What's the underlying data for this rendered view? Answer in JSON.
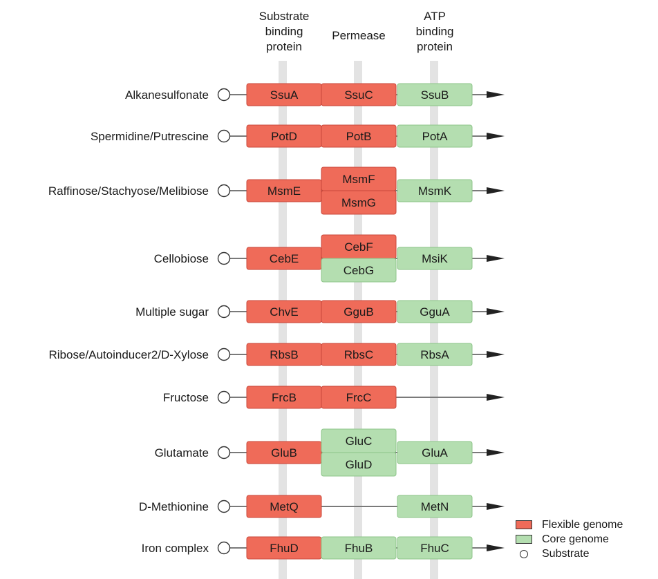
{
  "headers": {
    "substrate_binding": "Substrate\nbinding\nprotein",
    "permease": "Permease",
    "atp_binding": "ATP\nbinding\nprotein"
  },
  "colors": {
    "flexible_fill": "#ef6b59",
    "flexible_stroke": "#c9473a",
    "core_fill": "#b4deb0",
    "core_stroke": "#8cc488",
    "column_band": "#e3e3e3",
    "line": "#7a7a7a",
    "arrow": "#222222"
  },
  "systems": [
    {
      "substrate": "Alkanesulfonate",
      "sbp": {
        "name": "SsuA",
        "genome": "flexible"
      },
      "permease": [
        {
          "name": "SsuC",
          "genome": "flexible"
        }
      ],
      "atp": {
        "name": "SsuB",
        "genome": "core"
      }
    },
    {
      "substrate": "Spermidine/Putrescine",
      "sbp": {
        "name": "PotD",
        "genome": "flexible"
      },
      "permease": [
        {
          "name": "PotB",
          "genome": "flexible"
        }
      ],
      "atp": {
        "name": "PotA",
        "genome": "core"
      }
    },
    {
      "substrate": "Raffinose/Stachyose/Melibiose",
      "sbp": {
        "name": "MsmE",
        "genome": "flexible"
      },
      "permease": [
        {
          "name": "MsmF",
          "genome": "flexible"
        },
        {
          "name": "MsmG",
          "genome": "flexible"
        }
      ],
      "atp": {
        "name": "MsmK",
        "genome": "core"
      }
    },
    {
      "substrate": "Cellobiose",
      "sbp": {
        "name": "CebE",
        "genome": "flexible"
      },
      "permease": [
        {
          "name": "CebF",
          "genome": "flexible"
        },
        {
          "name": "CebG",
          "genome": "core"
        }
      ],
      "atp": {
        "name": "MsiK",
        "genome": "core"
      }
    },
    {
      "substrate": "Multiple sugar",
      "sbp": {
        "name": "ChvE",
        "genome": "flexible"
      },
      "permease": [
        {
          "name": "GguB",
          "genome": "flexible"
        }
      ],
      "atp": {
        "name": "GguA",
        "genome": "core"
      }
    },
    {
      "substrate": "Ribose/Autoinducer2/D-Xylose",
      "sbp": {
        "name": "RbsB",
        "genome": "flexible"
      },
      "permease": [
        {
          "name": "RbsC",
          "genome": "flexible"
        }
      ],
      "atp": {
        "name": "RbsA",
        "genome": "core"
      }
    },
    {
      "substrate": "Fructose",
      "sbp": {
        "name": "FrcB",
        "genome": "flexible"
      },
      "permease": [
        {
          "name": "FrcC",
          "genome": "flexible"
        }
      ],
      "atp": null
    },
    {
      "substrate": "Glutamate",
      "sbp": {
        "name": "GluB",
        "genome": "flexible"
      },
      "permease": [
        {
          "name": "GluC",
          "genome": "core"
        },
        {
          "name": "GluD",
          "genome": "core"
        }
      ],
      "atp": {
        "name": "GluA",
        "genome": "core"
      }
    },
    {
      "substrate": "D-Methionine",
      "sbp": {
        "name": "MetQ",
        "genome": "flexible"
      },
      "permease": [],
      "atp": {
        "name": "MetN",
        "genome": "core"
      }
    },
    {
      "substrate": "Iron complex",
      "sbp": {
        "name": "FhuD",
        "genome": "flexible"
      },
      "permease": [
        {
          "name": "FhuB",
          "genome": "core"
        }
      ],
      "atp": {
        "name": "FhuC",
        "genome": "core"
      }
    }
  ],
  "legend": {
    "flexible": "Flexible genome",
    "core": "Core genome",
    "substrate": "Substrate"
  }
}
